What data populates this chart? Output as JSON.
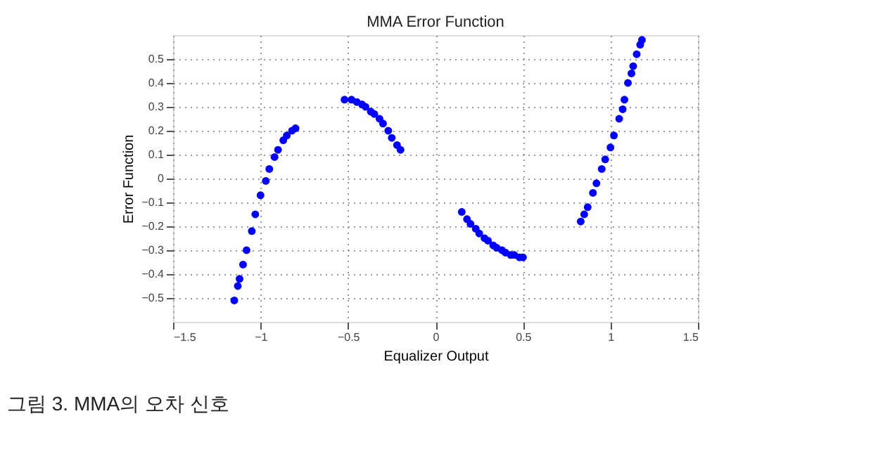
{
  "chart_data": {
    "type": "scatter",
    "title": "MMA Error Function",
    "xlabel": "Equalizer Output",
    "ylabel": "Error Function",
    "annotations": [
      "그림 3. MMA의 오차 신호"
    ],
    "x": [
      -1.15,
      -1.13,
      -1.12,
      -1.1,
      -1.08,
      -1.05,
      -1.03,
      -1.0,
      -0.97,
      -0.95,
      -0.92,
      -0.9,
      -0.87,
      -0.85,
      -0.82,
      -0.8,
      -0.52,
      -0.48,
      -0.45,
      -0.42,
      -0.4,
      -0.37,
      -0.35,
      -0.32,
      -0.3,
      -0.27,
      -0.25,
      -0.22,
      -0.2,
      0.15,
      0.18,
      0.2,
      0.23,
      0.25,
      0.28,
      0.3,
      0.33,
      0.35,
      0.38,
      0.4,
      0.43,
      0.45,
      0.48,
      0.5,
      0.83,
      0.85,
      0.87,
      0.9,
      0.92,
      0.95,
      0.97,
      1.0,
      1.02,
      1.05,
      1.07,
      1.08,
      1.1,
      1.12,
      1.13,
      1.15,
      1.17,
      1.18
    ],
    "series": [
      {
        "color": "#0000ff",
        "values": [
          -0.51,
          -0.45,
          -0.42,
          -0.36,
          -0.3,
          -0.22,
          -0.15,
          -0.07,
          -0.01,
          0.04,
          0.09,
          0.12,
          0.16,
          0.18,
          0.2,
          0.21,
          0.33,
          0.33,
          0.32,
          0.31,
          0.3,
          0.28,
          0.27,
          0.25,
          0.23,
          0.2,
          0.17,
          0.14,
          0.12,
          -0.14,
          -0.17,
          -0.19,
          -0.21,
          -0.23,
          -0.25,
          -0.26,
          -0.28,
          -0.29,
          -0.3,
          -0.31,
          -0.32,
          -0.32,
          -0.33,
          -0.33,
          -0.18,
          -0.15,
          -0.12,
          -0.06,
          -0.02,
          0.04,
          0.08,
          0.13,
          0.18,
          0.25,
          0.29,
          0.33,
          0.4,
          0.44,
          0.47,
          0.52,
          0.56,
          0.58
        ]
      }
    ],
    "xlim": [
      -1.5,
      1.5
    ],
    "xticks": [
      -1.5,
      -1,
      -0.5,
      0,
      0.5,
      1,
      1.5
    ],
    "ylim": [
      -0.6,
      0.6
    ],
    "yticks": [
      -0.5,
      -0.4,
      -0.3,
      -0.2,
      -0.1,
      0,
      0.1,
      0.2,
      0.3,
      0.4,
      0.5
    ],
    "grid": true,
    "marker": "circle"
  }
}
